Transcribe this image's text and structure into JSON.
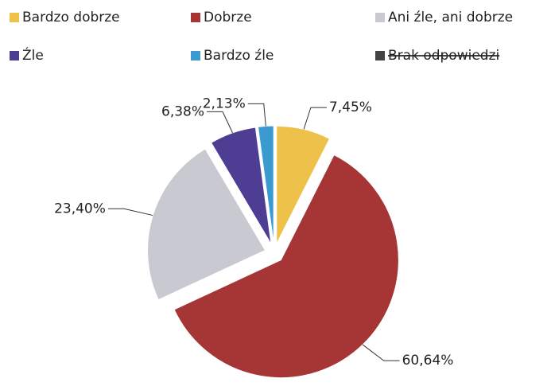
{
  "chart_data": {
    "type": "pie",
    "categories": [
      "Bardzo dobrze",
      "Dobrze",
      "Ani źle, ani dobrze",
      "Źle",
      "Bardzo źle",
      "Brak odpowiedzi"
    ],
    "values": [
      7.45,
      60.64,
      23.4,
      6.38,
      2.13,
      null
    ],
    "value_labels": [
      "7,45%",
      "60,64%",
      "23,40%",
      "6,38%",
      "2,13%",
      null
    ],
    "colors": [
      "#eec24a",
      "#a63535",
      "#c9c9d1",
      "#4d3d93",
      "#3b9bd1",
      "#444444"
    ],
    "legend": "top"
  }
}
